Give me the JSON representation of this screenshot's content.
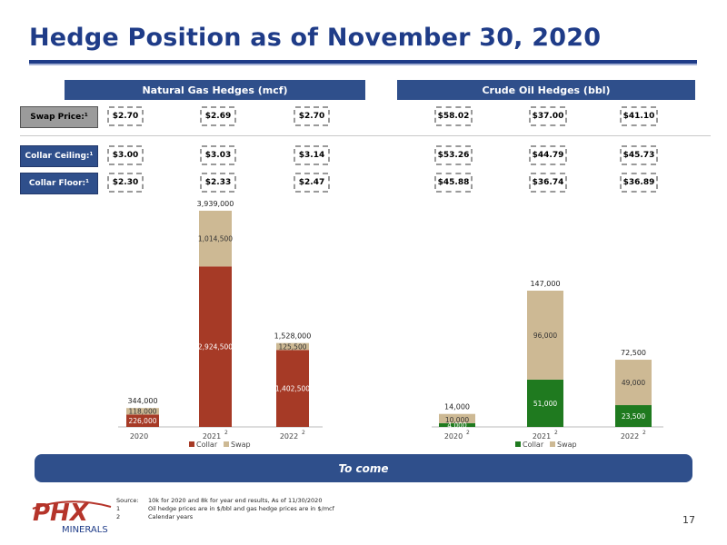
{
  "page": {
    "title": "Hedge Position as of November 30, 2020",
    "page_number": "17",
    "to_come": "To come"
  },
  "sections": {
    "gas_header": "Natural Gas Hedges (mcf)",
    "oil_header": "Crude Oil Hedges (bbl)"
  },
  "row_labels": {
    "swap": "Swap Price:¹",
    "collar_ceiling": "Collar Ceiling:¹",
    "collar_floor": "Collar Floor:¹"
  },
  "prices": {
    "gas_swap": [
      "$2.70",
      "$2.69",
      "$2.70"
    ],
    "oil_swap": [
      "$58.02",
      "$37.00",
      "$41.10"
    ],
    "gas_ceiling": [
      "$3.00",
      "$3.03",
      "$3.14"
    ],
    "oil_ceiling": [
      "$53.26",
      "$44.79",
      "$45.73"
    ],
    "gas_floor": [
      "$2.30",
      "$2.33",
      "$2.47"
    ],
    "oil_floor": [
      "$45.88",
      "$36.74",
      "$36.89"
    ]
  },
  "footnotes": {
    "source_label": "Source:",
    "source_text": "10k for 2020 and 8k for year end results, As of 11/30/2020",
    "n1": "1",
    "n1_text": "Oil hedge prices are in $/bbl and gas hedge prices are in $/mcf",
    "n2": "2",
    "n2_text": "Calendar years"
  },
  "logo": {
    "text": "PHX",
    "subtext": "MINERALS"
  },
  "colors": {
    "title_blue": "#1f3c88",
    "header_blue": "#2f4f8b",
    "gas_collar": "#a63a26",
    "oil_collar": "#1f7a1f",
    "swap": "#cdb994"
  },
  "chart_data": [
    {
      "type": "bar",
      "stacked": true,
      "categories": [
        "2020",
        "2021",
        "2022"
      ],
      "category_superscripts": [
        "",
        "2",
        "2"
      ],
      "series": [
        {
          "name": "Collar",
          "values": [
            226000,
            2924500,
            1402500
          ],
          "labels": [
            "226,000",
            "2,924,500",
            "1,402,500"
          ]
        },
        {
          "name": "Swap",
          "values": [
            118000,
            1014500,
            125500
          ],
          "labels": [
            "118,000",
            "1,014,500",
            "125,500"
          ]
        }
      ],
      "totals": [
        "344,000",
        "3,939,000",
        "1,528,000"
      ],
      "total_values": [
        344000,
        3939000,
        1528000
      ],
      "legend": "bottom"
    },
    {
      "type": "bar",
      "stacked": true,
      "categories": [
        "2020",
        "2021",
        "2022"
      ],
      "category_superscripts": [
        "2",
        "2",
        "2"
      ],
      "series": [
        {
          "name": "Collar",
          "values": [
            4000,
            51000,
            23500
          ],
          "labels": [
            "4,000",
            "51,000",
            "23,500"
          ]
        },
        {
          "name": "Swap",
          "values": [
            10000,
            96000,
            49000
          ],
          "labels": [
            "10,000",
            "96,000",
            "49,000"
          ]
        }
      ],
      "totals": [
        "14,000",
        "147,000",
        "72,500"
      ],
      "total_values": [
        14000,
        147000,
        72500
      ],
      "legend": "bottom"
    }
  ]
}
